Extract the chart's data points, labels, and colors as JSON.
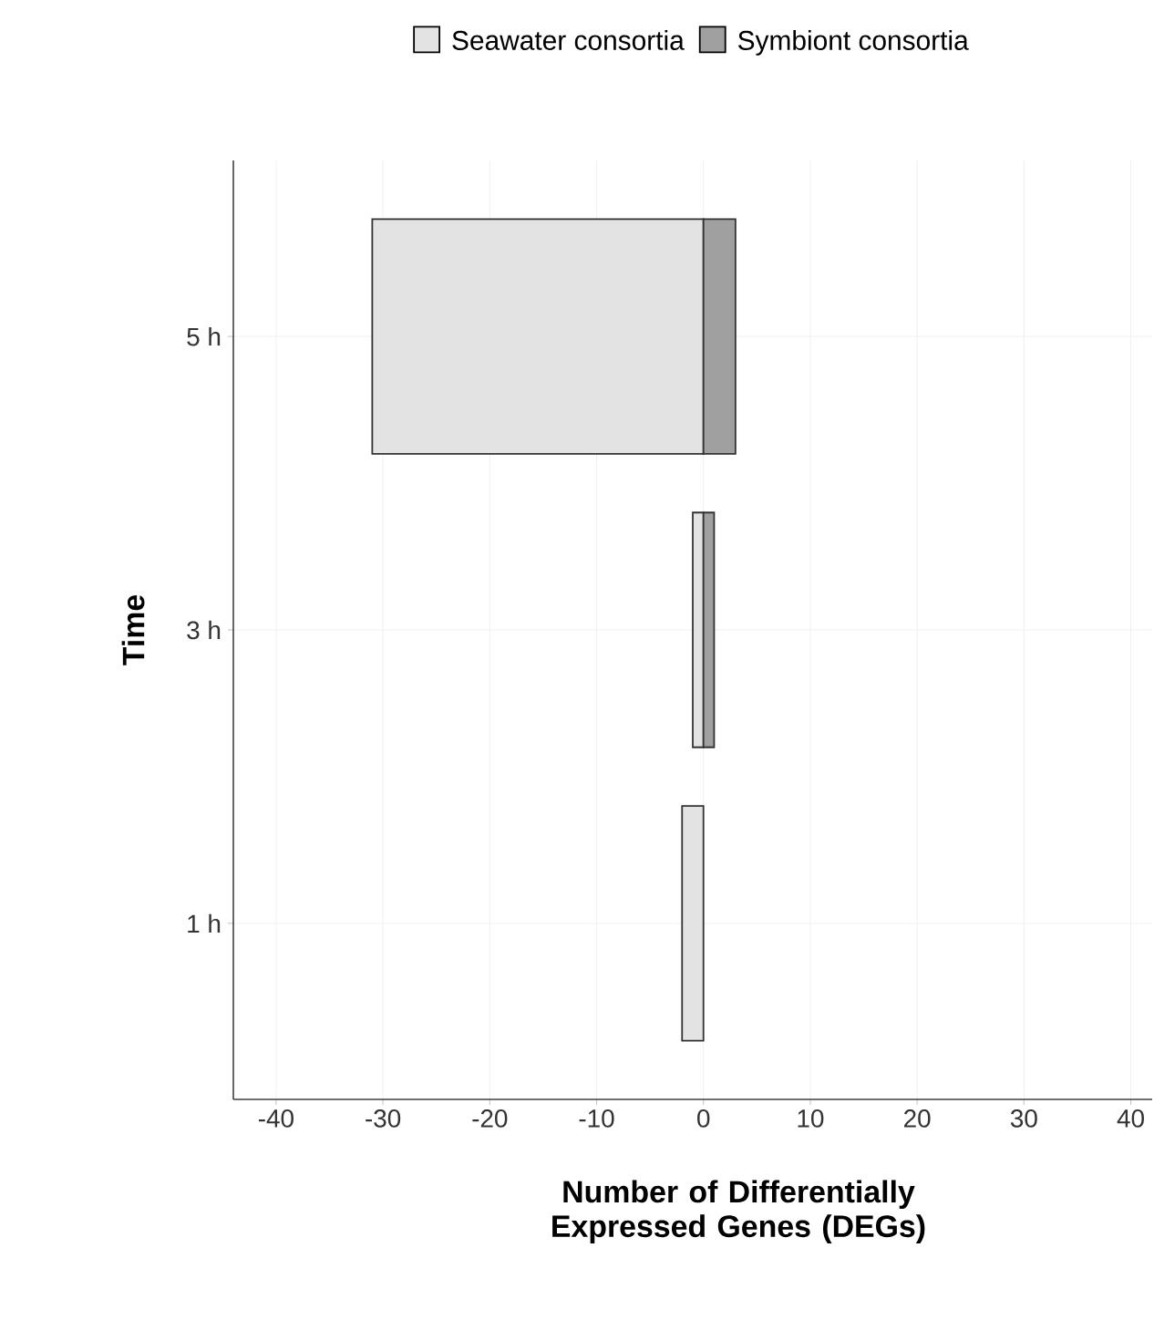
{
  "chart_data": {
    "type": "bar",
    "orientation": "horizontal",
    "stacked": true,
    "categories": [
      "5 h",
      "3 h",
      "1 h"
    ],
    "series": [
      {
        "name": "Seawater consortia",
        "color": "#e3e3e3",
        "values": [
          -31,
          -1,
          -2
        ]
      },
      {
        "name": "Symbiont consortia",
        "color": "#a0a0a0",
        "values": [
          3,
          1,
          null
        ]
      }
    ],
    "xlim": [
      -44,
      42
    ],
    "xticks": [
      -40,
      -30,
      -20,
      -10,
      0,
      10,
      20,
      30,
      40
    ],
    "xlabel": "Number of Differentially Expressed Genes (DEGs)",
    "ylabel": "Time",
    "grid": true,
    "legend": "top"
  }
}
